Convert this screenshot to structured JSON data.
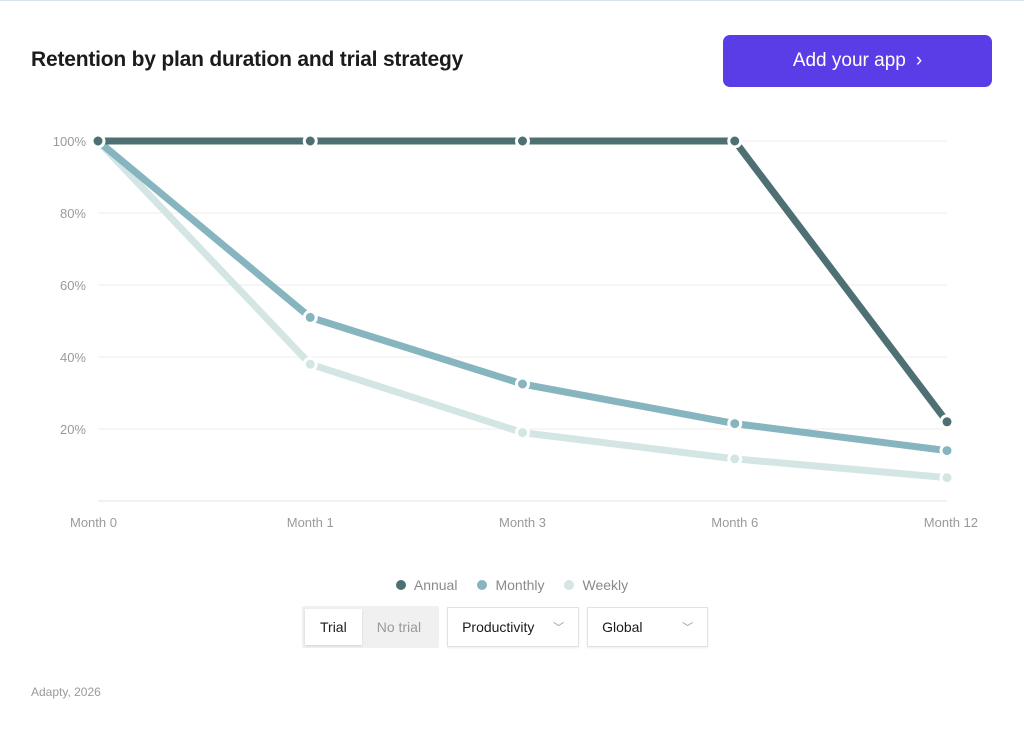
{
  "header": {
    "title": "Retention by plan duration and trial strategy",
    "cta_label": "Add your app",
    "cta_icon": "chevron-right-icon",
    "cta_color": "#5b3de8"
  },
  "chart_data": {
    "type": "line",
    "categories": [
      "Month 0",
      "Month 1",
      "Month 3",
      "Month 6",
      "Month 12"
    ],
    "ylim": [
      0,
      100
    ],
    "yticks": [
      20,
      40,
      60,
      80,
      100
    ],
    "ytick_labels": [
      "20%",
      "40%",
      "60%",
      "80%",
      "100%"
    ],
    "grid": true,
    "legend_placement": "bottom",
    "series": [
      {
        "name": "Annual",
        "color": "#4f7073",
        "values": [
          100,
          100,
          100,
          100,
          22
        ]
      },
      {
        "name": "Monthly",
        "color": "#86b5c0",
        "values": [
          100,
          51,
          32.5,
          21.5,
          14
        ]
      },
      {
        "name": "Weekly",
        "color": "#d3e6e3",
        "values": [
          100,
          38,
          19,
          11.7,
          6.5
        ]
      }
    ]
  },
  "controls": {
    "trial_options": [
      "Trial",
      "No trial"
    ],
    "trial_selected": "Trial",
    "category": "Productivity",
    "region": "Global"
  },
  "footer": {
    "source": "Adapty, 2026"
  }
}
